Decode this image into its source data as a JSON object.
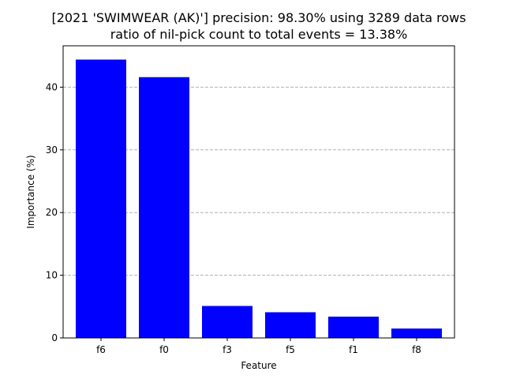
{
  "chart_data": {
    "type": "bar",
    "title": "[2021 'SWIMWEAR (AK)'] precision: 98.30% using 3289 data rows",
    "subtitle": "ratio of nil-pick count to total events = 13.38%",
    "xlabel": "Feature",
    "ylabel": "Importance (%)",
    "categories": [
      "f6",
      "f0",
      "f3",
      "f5",
      "f1",
      "f8"
    ],
    "values": [
      44.4,
      41.6,
      5.1,
      4.1,
      3.4,
      1.5
    ],
    "ylim": [
      0,
      46.6
    ],
    "yticks": [
      0,
      10,
      20,
      30,
      40
    ],
    "grid": "y-dashed",
    "bar_color": "#0000ff",
    "grid_color": "#b0b0b0"
  }
}
